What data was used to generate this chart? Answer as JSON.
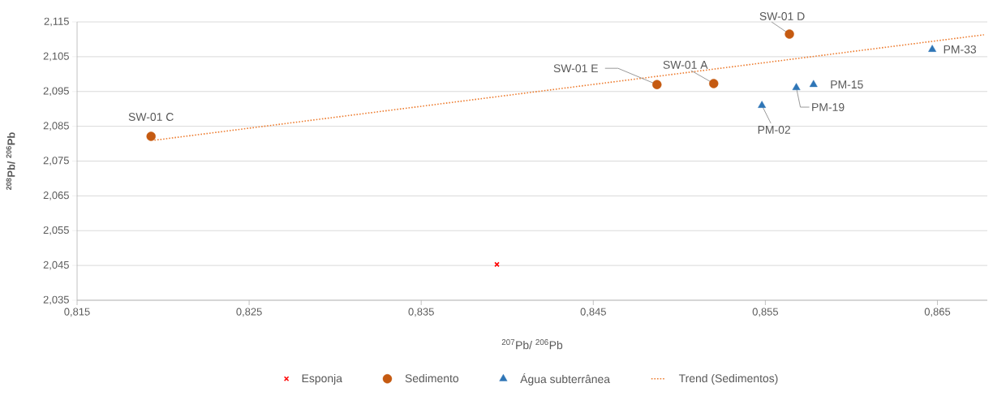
{
  "chart_data": {
    "type": "scatter",
    "xlabel": "$^{207}$Pb/ $^{206}$Pb",
    "ylabel": "$^{208}$Pb/ $^{206}$Pb",
    "series": [
      {
        "name": "Esponja",
        "color": "#ff0000",
        "marker": "cross",
        "x": [
          0.8394
        ],
        "values": [
          2.0453
        ]
      },
      {
        "name": "Sedimento",
        "color": "#c55a11",
        "marker": "circle",
        "x": [
          0.8193,
          0.8487,
          0.852,
          0.8564
        ],
        "values": [
          2.0821,
          2.097,
          2.0973,
          2.1115
        ]
      },
      {
        "name": "Água subterrânea",
        "color": "#2e75b6",
        "marker": "triangle",
        "x": [
          0.8548,
          0.8568,
          0.8578,
          0.8647
        ],
        "values": [
          2.091,
          2.0961,
          2.097,
          2.1071
        ]
      },
      {
        "name": "Trend (Sedimentos)",
        "type": "line",
        "line_style": "dotted",
        "marker": "none",
        "color": "#ed7d31",
        "x": [
          0.8195,
          0.8677
        ],
        "values": [
          2.081,
          2.1113
        ]
      }
    ],
    "annotations": [
      {
        "text": "SW-01 C",
        "x": 0.8193,
        "y": 2.0821
      },
      {
        "text": "SW-01 E",
        "x": 0.8487,
        "y": 2.097
      },
      {
        "text": "SW-01 A",
        "x": 0.852,
        "y": 2.0973
      },
      {
        "text": "SW-01 D",
        "x": 0.8564,
        "y": 2.1115
      },
      {
        "text": "PM-02",
        "x": 0.8548,
        "y": 2.091
      },
      {
        "text": "PM-19",
        "x": 0.8568,
        "y": 2.0961
      },
      {
        "text": "PM-15",
        "x": 0.8578,
        "y": 2.097
      },
      {
        "text": "PM-33",
        "x": 0.8647,
        "y": 2.1071
      }
    ],
    "xlim": [
      0.815,
      0.8679
    ],
    "ylim": [
      2.035,
      2.115
    ],
    "xticks": [
      {
        "value": 0.815,
        "label": "0,815"
      },
      {
        "value": 0.825,
        "label": "0,825"
      },
      {
        "value": 0.835,
        "label": "0,835"
      },
      {
        "value": 0.845,
        "label": "0,845"
      },
      {
        "value": 0.855,
        "label": "0,855"
      },
      {
        "value": 0.865,
        "label": "0,865"
      }
    ],
    "yticks": [
      {
        "value": 2.035,
        "label": "2,035"
      },
      {
        "value": 2.045,
        "label": "2,045"
      },
      {
        "value": 2.055,
        "label": "2,055"
      },
      {
        "value": 2.065,
        "label": "2,065"
      },
      {
        "value": 2.075,
        "label": "2,075"
      },
      {
        "value": 2.085,
        "label": "2,085"
      },
      {
        "value": 2.095,
        "label": "2,095"
      },
      {
        "value": 2.105,
        "label": "2,105"
      },
      {
        "value": 2.115,
        "label": "2,115"
      }
    ],
    "grid": "y",
    "legend": "bottom"
  }
}
